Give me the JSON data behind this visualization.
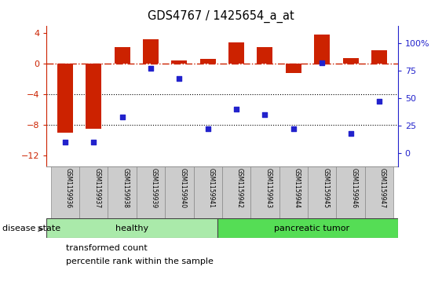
{
  "title": "GDS4767 / 1425654_a_at",
  "samples": [
    "GSM1159936",
    "GSM1159937",
    "GSM1159938",
    "GSM1159939",
    "GSM1159940",
    "GSM1159941",
    "GSM1159942",
    "GSM1159943",
    "GSM1159944",
    "GSM1159945",
    "GSM1159946",
    "GSM1159947"
  ],
  "transformed_count": [
    -9.0,
    -8.5,
    2.2,
    3.2,
    0.4,
    0.6,
    2.8,
    2.2,
    -1.2,
    3.8,
    0.7,
    1.8
  ],
  "percentile_rank": [
    10,
    10,
    33,
    77,
    68,
    22,
    40,
    35,
    22,
    82,
    18,
    47
  ],
  "bar_color": "#cc2200",
  "dot_color": "#2222cc",
  "healthy_count": 6,
  "groups": [
    "healthy",
    "pancreatic tumor"
  ],
  "group_color": "#88ee88",
  "ylim_left": [
    -13.5,
    5.0
  ],
  "yticks_left": [
    -12,
    -8,
    -4,
    0,
    4
  ],
  "ylim_right": [
    -12.375,
    115.625
  ],
  "yticks_right": [
    0,
    25,
    50,
    75,
    100
  ],
  "hline_y": 0,
  "dotted_lines": [
    -4,
    -8
  ],
  "legend_items": [
    "transformed count",
    "percentile rank within the sample"
  ],
  "disease_state_label": "disease state",
  "background_color": "#ffffff",
  "healthy_lighter": "#bbf0bb",
  "tumor_darker": "#55dd55"
}
